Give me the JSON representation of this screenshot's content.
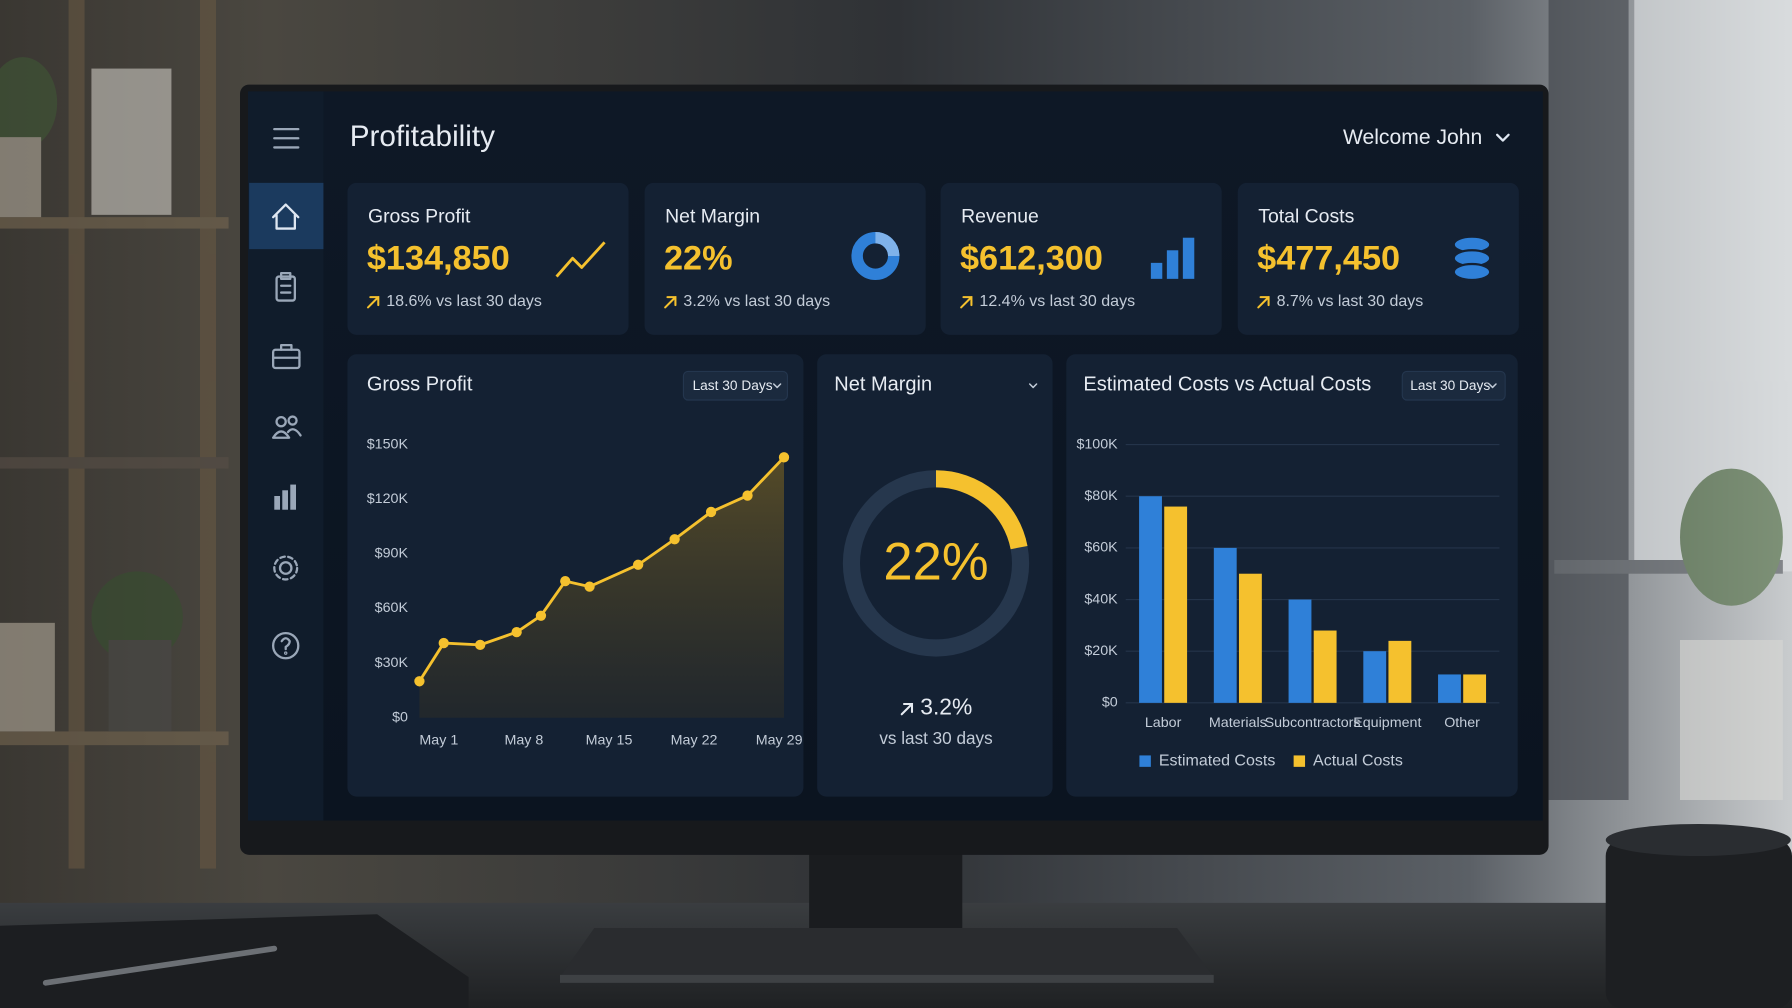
{
  "header": {
    "title": "Profitability",
    "user": "Welcome John"
  },
  "kpis": [
    {
      "label": "Gross Profit",
      "value": "$134,850",
      "change": "18.6% vs last 30 days"
    },
    {
      "label": "Net Margin",
      "value": "22%",
      "change": "3.2% vs last 30 days"
    },
    {
      "label": "Revenue",
      "value": "$612,300",
      "change": "12.4% vs last 30 days"
    },
    {
      "label": "Total Costs",
      "value": "$477,450",
      "change": "8.7% vs last 30 days"
    }
  ],
  "chart_data": [
    {
      "type": "line",
      "title": "Gross Profit",
      "range_selector": "Last 30 Days",
      "x": [
        1,
        3,
        6,
        9,
        11,
        13,
        15,
        19,
        22,
        25,
        28,
        31
      ],
      "values": [
        20000,
        41000,
        40000,
        47000,
        56000,
        75000,
        72000,
        84000,
        98000,
        113000,
        122000,
        143000
      ],
      "color": "#f5c12e",
      "area": true,
      "xlim": [
        1,
        31
      ],
      "xticks": [
        {
          "value": 1,
          "label": "May 1"
        },
        {
          "value": 8,
          "label": "May 8"
        },
        {
          "value": 15,
          "label": "May 15"
        },
        {
          "value": 22,
          "label": "May 22"
        },
        {
          "value": 29,
          "label": "May 29"
        }
      ],
      "ylim": [
        0,
        150000
      ],
      "yticks": [
        {
          "value": 0,
          "label": "$0"
        },
        {
          "value": 30000,
          "label": "$30K"
        },
        {
          "value": 60000,
          "label": "$60K"
        },
        {
          "value": 90000,
          "label": "$90K"
        },
        {
          "value": 120000,
          "label": "$120K"
        },
        {
          "value": 150000,
          "label": "$150K"
        }
      ],
      "grid": false
    },
    {
      "type": "donut",
      "title": "Net Margin",
      "values": [
        22
      ],
      "value_labels": [
        "22%"
      ],
      "color": "#f5c12e",
      "change": "3.2%",
      "change_note": "vs last 30 days"
    },
    {
      "type": "bar",
      "title": "Estimated Costs vs Actual Costs",
      "range_selector": "Last 30 Days",
      "categories": [
        "Labor",
        "Materials",
        "Subcontractors",
        "Equipment",
        "Other"
      ],
      "series": [
        {
          "name": "Estimated Costs",
          "color": "#2f80d8",
          "values": [
            80000,
            60000,
            40000,
            20000,
            11000
          ]
        },
        {
          "name": "Actual Costs",
          "color": "#f5c12e",
          "values": [
            76000,
            50000,
            28000,
            24000,
            11000
          ]
        }
      ],
      "ylim": [
        0,
        100000
      ],
      "yticks": [
        {
          "value": 0,
          "label": "$0"
        },
        {
          "value": 20000,
          "label": "$20K"
        },
        {
          "value": 40000,
          "label": "$40K"
        },
        {
          "value": 60000,
          "label": "$60K"
        },
        {
          "value": 80000,
          "label": "$80K"
        },
        {
          "value": 100000,
          "label": "$100K"
        }
      ],
      "grid": true
    }
  ]
}
